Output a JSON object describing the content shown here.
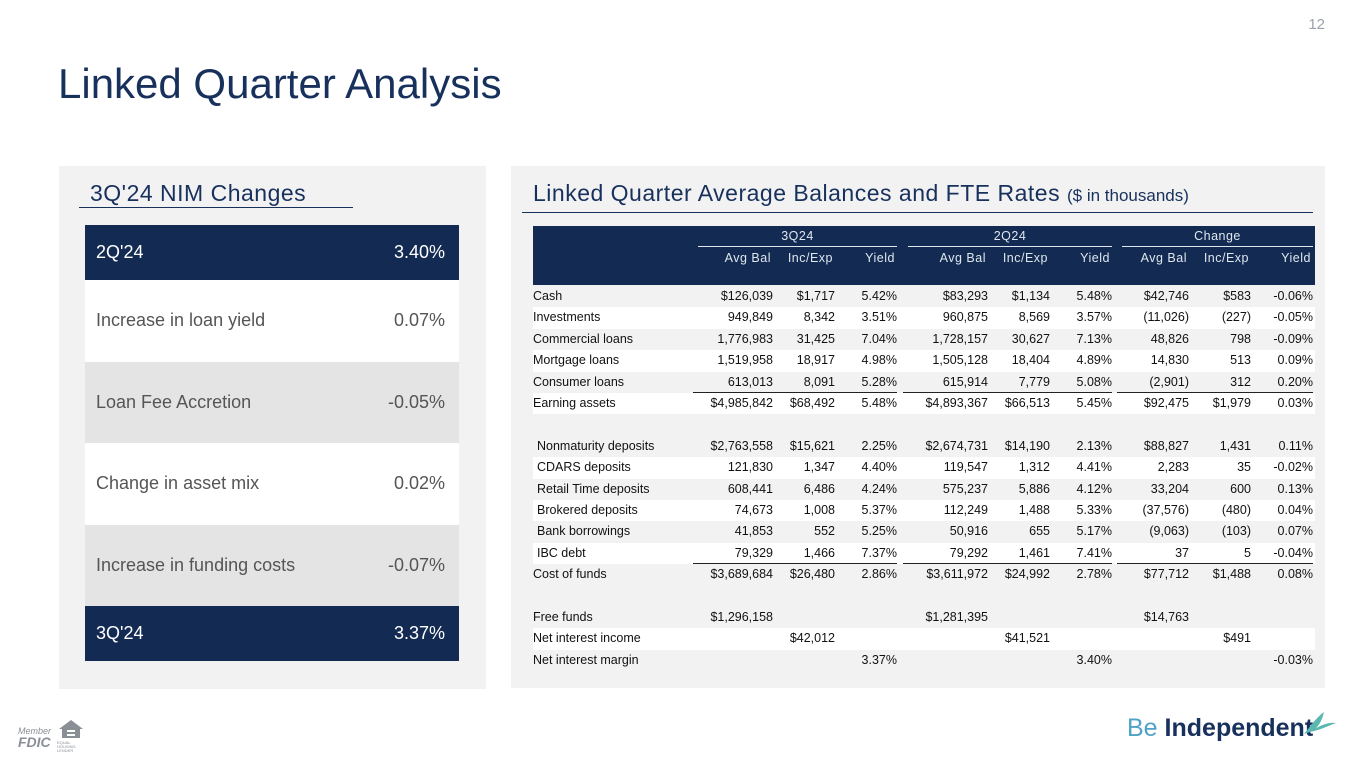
{
  "page_number": "12",
  "title": "Linked Quarter Analysis",
  "nim": {
    "title": "3Q'24 NIM Changes",
    "rows": [
      [
        "2Q'24",
        "3.40%"
      ],
      [
        "Increase in loan yield",
        "0.07%"
      ],
      [
        "Loan Fee Accretion",
        "-0.05%"
      ],
      [
        "Change in asset mix",
        "0.02%"
      ],
      [
        "Increase in funding costs",
        "-0.07%"
      ],
      [
        "3Q'24",
        "3.37%"
      ]
    ]
  },
  "table": {
    "title": "Linked Quarter Average Balances and FTE Rates",
    "subtitle": "($ in thousands)",
    "groups": [
      "3Q24",
      "2Q24",
      "Change"
    ],
    "columns": [
      "Avg Bal",
      "Inc/Exp",
      "Yield",
      "Avg Bal",
      "Inc/Exp",
      "Yield",
      "Avg Bal",
      "Inc/Exp",
      "Yield"
    ],
    "sections": [
      [
        [
          "Cash",
          "$126,039",
          "$1,717",
          "5.42%",
          "$83,293",
          "$1,134",
          "5.48%",
          "$42,746",
          "$583",
          "-0.06%"
        ],
        [
          "Investments",
          "949,849",
          "8,342",
          "3.51%",
          "960,875",
          "8,569",
          "3.57%",
          "(11,026)",
          "(227)",
          "-0.05%"
        ],
        [
          "Commercial loans",
          "1,776,983",
          "31,425",
          "7.04%",
          "1,728,157",
          "30,627",
          "7.13%",
          "48,826",
          "798",
          "-0.09%"
        ],
        [
          "Mortgage loans",
          "1,519,958",
          "18,917",
          "4.98%",
          "1,505,128",
          "18,404",
          "4.89%",
          "14,830",
          "513",
          "0.09%"
        ],
        [
          "Consumer loans",
          "613,013",
          "8,091",
          "5.28%",
          "615,914",
          "7,779",
          "5.08%",
          "(2,901)",
          "312",
          "0.20%"
        ],
        [
          "Earning assets",
          "$4,985,842",
          "$68,492",
          "5.48%",
          "$4,893,367",
          "$66,513",
          "5.45%",
          "$92,475",
          "$1,979",
          "0.03%"
        ]
      ],
      [
        [
          "Nonmaturity deposits",
          "$2,763,558",
          "$15,621",
          "2.25%",
          "$2,674,731",
          "$14,190",
          "2.13%",
          "$88,827",
          "1,431",
          "0.11%"
        ],
        [
          "CDARS deposits",
          "121,830",
          "1,347",
          "4.40%",
          "119,547",
          "1,312",
          "4.41%",
          "2,283",
          "35",
          "-0.02%"
        ],
        [
          "Retail Time deposits",
          "608,441",
          "6,486",
          "4.24%",
          "575,237",
          "5,886",
          "4.12%",
          "33,204",
          "600",
          "0.13%"
        ],
        [
          "Brokered deposits",
          "74,673",
          "1,008",
          "5.37%",
          "112,249",
          "1,488",
          "5.33%",
          "(37,576)",
          "(480)",
          "0.04%"
        ],
        [
          "Bank borrowings",
          "41,853",
          "552",
          "5.25%",
          "50,916",
          "655",
          "5.17%",
          "(9,063)",
          "(103)",
          "0.07%"
        ],
        [
          "IBC debt",
          "79,329",
          "1,466",
          "7.37%",
          "79,292",
          "1,461",
          "7.41%",
          "37",
          "5",
          "-0.04%"
        ],
        [
          "Cost of funds",
          "$3,689,684",
          "$26,480",
          "2.86%",
          "$3,611,972",
          "$24,992",
          "2.78%",
          "$77,712",
          "$1,488",
          "0.08%"
        ]
      ],
      [
        [
          "Free funds",
          "$1,296,158",
          null,
          null,
          "$1,281,395",
          null,
          null,
          "$14,763",
          null,
          null
        ],
        [
          "Net interest income",
          null,
          "$42,012",
          null,
          null,
          "$41,521",
          null,
          null,
          "$491",
          null
        ],
        [
          "Net interest margin",
          null,
          null,
          "3.37%",
          null,
          null,
          "3.40%",
          null,
          null,
          "-0.03%"
        ]
      ]
    ]
  },
  "footer": {
    "member": "Member",
    "fdic": "FDIC",
    "lender": "EQUAL HOUSING LENDER",
    "brand_be": "Be",
    "brand_name": "Independent"
  }
}
